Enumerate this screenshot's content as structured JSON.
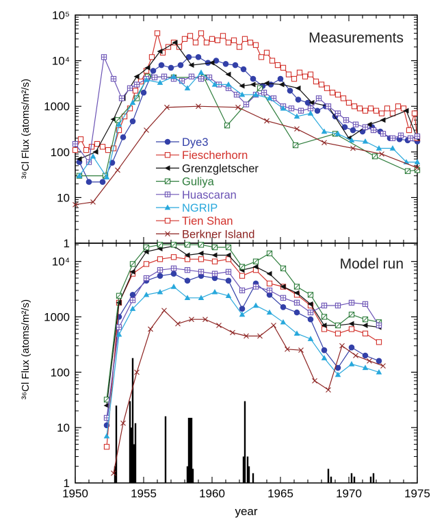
{
  "chart_data": [
    {
      "type": "line",
      "title": "Measurements",
      "xlabel": "",
      "ylabel": "³⁶Cl Flux (atoms/m²/s)",
      "xlim": [
        1950,
        1975
      ],
      "ylim": [
        1,
        100000
      ],
      "yscale": "log",
      "legend": "center-left",
      "ytick_labels": [
        "1",
        "10",
        "100",
        "1000",
        "10⁴",
        "10⁵"
      ],
      "series": [
        {
          "name": "Dye3",
          "color": "#3340a8",
          "marker": "circle",
          "x": [
            1950.3,
            1951,
            1952,
            1952.7,
            1953.5,
            1954.2,
            1955,
            1955.7,
            1956.3,
            1957,
            1957.7,
            1958.3,
            1959,
            1959.7,
            1960.3,
            1961,
            1961.7,
            1962.3,
            1963,
            1963.7,
            1964.3,
            1965,
            1965.7,
            1966.3,
            1967,
            1967.7,
            1968.3,
            1969,
            1969.7,
            1970.3,
            1971,
            1971.7,
            1972.3,
            1973,
            1973.7,
            1974.3,
            1975
          ],
          "y": [
            60,
            22,
            22,
            58,
            210,
            470,
            2000,
            6000,
            8000,
            7000,
            8000,
            12000,
            12000,
            9000,
            10000,
            8500,
            8000,
            6500,
            4000,
            2800,
            3000,
            4000,
            2200,
            1400,
            1200,
            800,
            1000,
            600,
            350,
            300,
            280,
            350,
            280,
            200,
            190,
            180,
            170
          ]
        },
        {
          "name": "Fiescherhorn",
          "color": "#d2302a",
          "marker": "square-open",
          "x": [
            1950,
            1950.4,
            1950.8,
            1951.2,
            1951.6,
            1952,
            1952.4,
            1952.8,
            1953.2,
            1953.6,
            1954,
            1954.4,
            1954.8,
            1955.2,
            1955.6,
            1956,
            1956.4,
            1956.8,
            1957.2,
            1957.6,
            1958,
            1958.4,
            1958.8,
            1959.2,
            1959.6,
            1960,
            1960.4,
            1960.8,
            1961.2,
            1961.6,
            1962,
            1962.4,
            1962.8,
            1963.2,
            1963.6,
            1964,
            1964.4,
            1964.8,
            1965.2,
            1965.6,
            1966,
            1966.4,
            1966.8,
            1967.2,
            1967.6,
            1968,
            1968.4,
            1968.8,
            1969.2,
            1969.6,
            1970,
            1970.4,
            1970.8,
            1971.2,
            1971.6,
            1972,
            1972.4,
            1972.8,
            1973.2,
            1973.6,
            1974,
            1974.4,
            1974.8,
            1975
          ],
          "y": [
            110,
            190,
            110,
            130,
            150,
            130,
            110,
            120,
            300,
            600,
            900,
            2200,
            3500,
            6000,
            12000,
            40000,
            15000,
            20000,
            25000,
            20000,
            30000,
            35000,
            25000,
            40000,
            25000,
            30000,
            28000,
            35000,
            25000,
            28000,
            20000,
            30000,
            25000,
            22000,
            12000,
            15000,
            10000,
            8000,
            7000,
            5000,
            4000,
            5500,
            4500,
            5000,
            3500,
            3000,
            2500,
            2000,
            1800,
            1500,
            1200,
            1000,
            900,
            800,
            900,
            800,
            700,
            900,
            700,
            1000,
            900,
            300,
            700,
            200
          ]
        },
        {
          "name": "Grenzgletscher",
          "color": "#111111",
          "marker": "triangle-left",
          "x": [
            1950.3,
            1951.5,
            1952.8,
            1953.5,
            1954.5,
            1955.3,
            1956.2,
            1957.3,
            1958.5,
            1960,
            1961.2,
            1962.2,
            1963,
            1964,
            1965.1,
            1966.3,
            1967.3,
            1968.5,
            1970,
            1971.5,
            1972.5,
            1974.2,
            1975
          ],
          "y": [
            70,
            100,
            520,
            1500,
            4500,
            7000,
            16000,
            25000,
            8000,
            9000,
            5000,
            2800,
            3000,
            3200,
            3000,
            2500,
            1200,
            1000,
            200,
            400,
            500,
            800,
            200
          ]
        },
        {
          "name": "Guliya",
          "color": "#2e7d3c",
          "marker": "square-diag",
          "x": [
            1950.3,
            1952.2,
            1953.1,
            1954.5,
            1955.3,
            1957.2,
            1959.4,
            1961.1,
            1963.5,
            1966.1,
            1969,
            1971.9,
            1974.3,
            1975
          ],
          "y": [
            30,
            30,
            500,
            1500,
            4500,
            4300,
            4300,
            380,
            2500,
            140,
            250,
            80,
            38,
            40
          ]
        },
        {
          "name": "Huascaran",
          "color": "#6b53b5",
          "marker": "square-plus",
          "x": [
            1950,
            1951,
            1952.1,
            1952.8,
            1953.4,
            1954,
            1954.5,
            1955.2,
            1955.8,
            1956.5,
            1957.2,
            1957.8,
            1958.5,
            1959.2,
            1959.8,
            1960.5,
            1961.2,
            1961.8,
            1962.5,
            1963.2,
            1963.8,
            1964.5,
            1965.2,
            1965.8,
            1966.5,
            1967.2,
            1967.8,
            1968.5,
            1969.2,
            1969.8,
            1970.5,
            1971.2,
            1971.8,
            1972.5,
            1973.2,
            1973.8,
            1974.5,
            1975
          ],
          "y": [
            150,
            60,
            12000,
            4000,
            1500,
            2500,
            3000,
            4000,
            4300,
            4500,
            4000,
            3600,
            4500,
            4000,
            4300,
            3000,
            2500,
            1800,
            1100,
            1800,
            2000,
            1500,
            1000,
            900,
            800,
            900,
            1500,
            1000,
            700,
            500,
            400,
            350,
            300,
            250,
            200,
            230,
            200,
            220
          ]
        },
        {
          "name": "NGRIP",
          "color": "#28a8dc",
          "marker": "triangle-up",
          "x": [
            1950.3,
            1951.3,
            1952.3,
            1953.2,
            1954.2,
            1955.2,
            1956.2,
            1957.2,
            1958.2,
            1959.2,
            1960.2,
            1961.2,
            1962.2,
            1963.2,
            1964.2,
            1965.2,
            1966.2,
            1967.2,
            1968.2,
            1969.2,
            1970.2,
            1971.2,
            1972.2,
            1973.2,
            1974.2,
            1975
          ],
          "y": [
            30,
            80,
            28,
            400,
            1200,
            3800,
            3300,
            4500,
            2500,
            5500,
            3000,
            3000,
            1800,
            1800,
            1500,
            900,
            600,
            700,
            280,
            250,
            180,
            170,
            120,
            120,
            60,
            60
          ]
        },
        {
          "name": "Tien Shan",
          "color": "#d2302a",
          "marker": "square-open",
          "x": [],
          "y": []
        },
        {
          "name": "Berkner Island",
          "color": "#8c2220",
          "marker": "x",
          "x": [
            1950,
            1951.3,
            1953.1,
            1955.2,
            1956.7,
            1959,
            1961.9,
            1964,
            1966.2,
            1968.2,
            1970.3,
            1972.4,
            1975
          ],
          "y": [
            7,
            8,
            40,
            300,
            950,
            1000,
            950,
            480,
            320,
            160,
            120,
            90,
            45
          ]
        }
      ]
    },
    {
      "type": "line",
      "title": "Model run",
      "xlabel": "year",
      "ylabel": "³⁶Cl Flux (atoms/m²/s)",
      "xlim": [
        1950,
        1975
      ],
      "ylim": [
        1,
        100000
      ],
      "yscale": "log",
      "ytick_labels": [
        "1",
        "10",
        "100",
        "1000",
        "10⁴"
      ],
      "xtick_labels": [
        "1950",
        "1955",
        "1960",
        "1965",
        "1970",
        "1975"
      ],
      "series": [
        {
          "name": "Dye3",
          "color": "#3340a8",
          "marker": "circle",
          "x": [
            1952.3,
            1953.2,
            1954.2,
            1955.2,
            1956.2,
            1957.2,
            1958.2,
            1959.2,
            1960.2,
            1961.2,
            1962.2,
            1963.2,
            1964.2,
            1965.2,
            1966.2,
            1967.2,
            1968.2,
            1969.2,
            1970.2,
            1971.2,
            1972.2
          ],
          "y": [
            11,
            1000,
            2500,
            4500,
            5500,
            6000,
            4500,
            5500,
            5000,
            4500,
            1400,
            4000,
            2500,
            1500,
            1200,
            900,
            250,
            120,
            280,
            200,
            160
          ]
        },
        {
          "name": "Fiescherhorn",
          "color": "#d2302a",
          "marker": "square-open",
          "x": [
            1952.3,
            1953.2,
            1954.2,
            1955.2,
            1956.2,
            1957.2,
            1958.2,
            1959.2,
            1960.2,
            1961.2,
            1962.2,
            1963.2,
            1964.2,
            1965.2,
            1966.2,
            1967.2,
            1968.2,
            1969.2,
            1970.2,
            1971.2,
            1972.2
          ],
          "y": [
            4.5,
            1800,
            6000,
            9000,
            11000,
            12000,
            11000,
            11000,
            10000,
            11000,
            5500,
            7000,
            4000,
            3500,
            2500,
            1600,
            600,
            500,
            600,
            500,
            350
          ]
        },
        {
          "name": "Grenzgletscher",
          "color": "#111111",
          "marker": "triangle-left",
          "x": [
            1952.3,
            1953.2,
            1954.2,
            1955.2,
            1956.2,
            1957.2,
            1958.2,
            1959.2,
            1960.2,
            1961.2,
            1962.2,
            1963.2,
            1964.2,
            1965.2,
            1966.2,
            1967.2,
            1968.2,
            1969.2,
            1970.2,
            1971.2,
            1972.2
          ],
          "y": [
            25,
            1800,
            6500,
            15000,
            17000,
            19000,
            13000,
            14000,
            13000,
            13000,
            7000,
            8000,
            6000,
            3500,
            2700,
            1700,
            700,
            700,
            750,
            700,
            650
          ]
        },
        {
          "name": "Guliya",
          "color": "#2e7d3c",
          "marker": "square-diag",
          "x": [
            1952.3,
            1953.2,
            1954.2,
            1955.2,
            1956.2,
            1957.2,
            1958.2,
            1959.2,
            1960.2,
            1961.2,
            1962.2,
            1963.2,
            1964.2,
            1965.2,
            1966.2,
            1967.2,
            1968.2,
            1969.2,
            1970.2,
            1971.2,
            1972.2
          ],
          "y": [
            32,
            2400,
            9000,
            18000,
            20000,
            20000,
            20000,
            20000,
            18000,
            18000,
            8000,
            10000,
            14000,
            7500,
            3500,
            2500,
            1000,
            700,
            1100,
            900,
            800
          ]
        },
        {
          "name": "Huascaran",
          "color": "#6b53b5",
          "marker": "square-plus",
          "x": [
            1952.3,
            1953.2,
            1954.2,
            1955.2,
            1956.2,
            1957.2,
            1958.2,
            1959.2,
            1960.2,
            1961.2,
            1962.2,
            1963.2,
            1964.2,
            1965.2,
            1966.2,
            1967.2,
            1968.2,
            1969.2,
            1970.2,
            1971.2,
            1972.2
          ],
          "y": [
            15,
            650,
            2000,
            5000,
            7000,
            7500,
            7000,
            6500,
            6000,
            6500,
            3000,
            3500,
            3000,
            2200,
            1800,
            1200,
            1600,
            1600,
            1800,
            1700,
            700
          ]
        },
        {
          "name": "NGRIP",
          "color": "#28a8dc",
          "marker": "triangle-up",
          "x": [
            1952.3,
            1953.2,
            1954.2,
            1955.2,
            1956.2,
            1957.2,
            1958.2,
            1959.2,
            1960.2,
            1961.2,
            1962.2,
            1963.2,
            1964.2,
            1965.2,
            1966.2,
            1967.2,
            1968.2,
            1969.2,
            1970.2,
            1971.2,
            1972.2
          ],
          "y": [
            7,
            480,
            1400,
            2500,
            2800,
            3500,
            2200,
            2200,
            2800,
            2400,
            1100,
            1600,
            1200,
            800,
            500,
            400,
            180,
            90,
            140,
            120,
            100
          ]
        },
        {
          "name": "Tien Shan",
          "color": "#d2302a",
          "marker": "square-open",
          "x": [],
          "y": []
        },
        {
          "name": "Berkner Island",
          "color": "#8c2220",
          "marker": "x",
          "x": [
            1952.8,
            1953.5,
            1954.5,
            1955.5,
            1956.5,
            1957.5,
            1958.5,
            1959.5,
            1960.5,
            1961.5,
            1962.5,
            1963.5,
            1964.5,
            1965.5,
            1966.5,
            1967.5,
            1968.5,
            1969.5,
            1970.5,
            1971.5,
            1972.5
          ],
          "y": [
            1.5,
            12,
            100,
            600,
            1300,
            750,
            900,
            900,
            700,
            520,
            450,
            450,
            700,
            260,
            250,
            70,
            48,
            300,
            200,
            160,
            130
          ]
        }
      ],
      "bars": {
        "color": "#000000",
        "x": [
          1952.9,
          1953.0,
          1954.0,
          1954.1,
          1954.2,
          1954.3,
          1954.4,
          1956.6,
          1958.2,
          1958.3,
          1958.4,
          1958.5,
          1958.6,
          1962.3,
          1962.4,
          1962.6,
          1962.7,
          1963.0,
          1968.5,
          1968.7,
          1970.2,
          1970.4,
          1971.6,
          1971.8
        ],
        "y": [
          2,
          25,
          30,
          10,
          180,
          5,
          12,
          16,
          2,
          15,
          15,
          15,
          1.8,
          3,
          30,
          3,
          2,
          1.5,
          1.8,
          1.3,
          1.5,
          1.3,
          1.3,
          1.5
        ]
      }
    }
  ]
}
